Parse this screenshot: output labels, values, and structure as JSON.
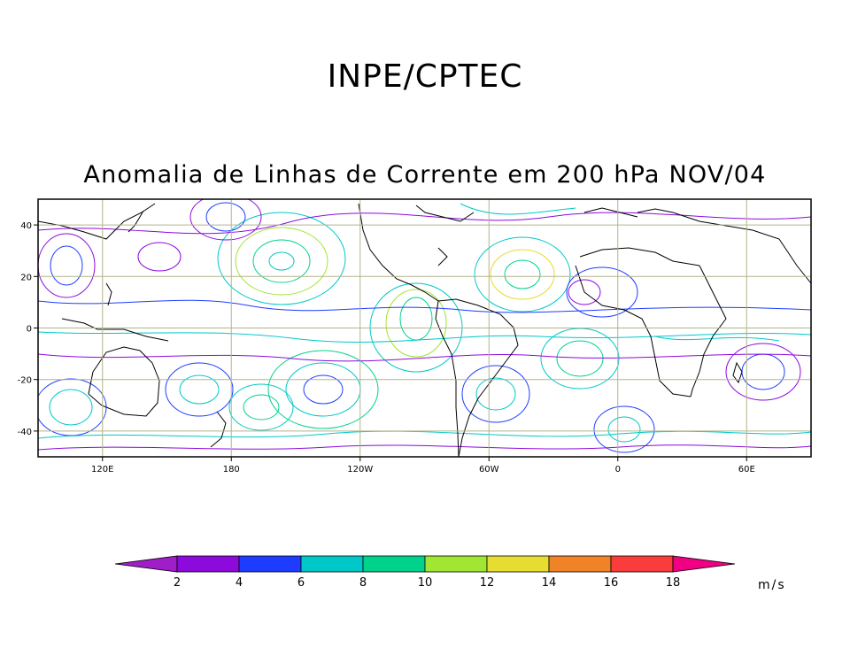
{
  "header": {
    "institution": "INPE/CPTEC",
    "title": "Anomalia de Linhas de Corrente em 200 hPa NOV/04"
  },
  "map": {
    "projection": "lat-lon",
    "lon_range": [
      90,
      450
    ],
    "lat_range": [
      -50,
      50
    ],
    "x_ticks": [
      {
        "lon": 120,
        "label": "120E"
      },
      {
        "lon": 180,
        "label": "180"
      },
      {
        "lon": 240,
        "label": "120W"
      },
      {
        "lon": 300,
        "label": "60W"
      },
      {
        "lon": 360,
        "label": "0"
      },
      {
        "lon": 420,
        "label": "60E"
      }
    ],
    "y_ticks": [
      {
        "lat": 40,
        "label": "40"
      },
      {
        "lat": 20,
        "label": "20"
      },
      {
        "lat": 0,
        "label": "0"
      },
      {
        "lat": -20,
        "label": "-20"
      },
      {
        "lat": -40,
        "label": "-40"
      }
    ],
    "grid": true,
    "grid_color": "#b4b48c"
  },
  "colorbar": {
    "unit": "m/s",
    "ticks": [
      "2",
      "4",
      "6",
      "8",
      "10",
      "12",
      "14",
      "16",
      "18"
    ],
    "colors": [
      "#a01ec8",
      "#8c0adc",
      "#1e3cff",
      "#00c8c8",
      "#00d28c",
      "#a0e632",
      "#e6dc32",
      "#f08228",
      "#fa3c3c",
      "#f00082"
    ]
  }
}
